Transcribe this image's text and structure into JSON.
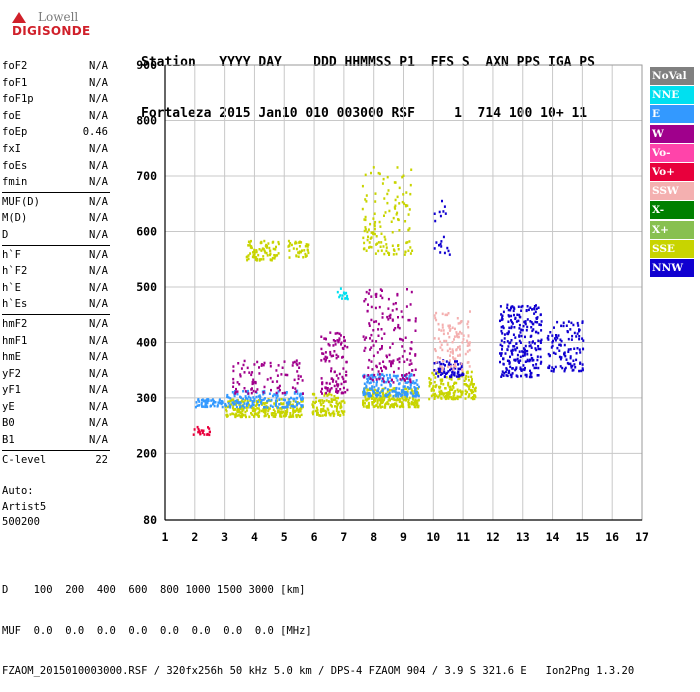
{
  "logo": {
    "line1": "Lowell",
    "line2": "DIGISONDE"
  },
  "header": {
    "labels": [
      "Station",
      "YYYY",
      "DAY",
      "DDD",
      "HHMMSS",
      "P1",
      "FFS",
      "S",
      "AXN",
      "PPS",
      "IGA",
      "PS"
    ],
    "label_line": "Station   YYYY DAY    DDD HHMMSS P1  FFS S  AXN PPS IGA PS",
    "value_line": "Fortaleza 2015 Jan10 010 003000 RSF     1  714 100 10+ 11"
  },
  "params": {
    "group1": [
      {
        "name": "foF2",
        "value": "N/A"
      },
      {
        "name": "foF1",
        "value": "N/A"
      },
      {
        "name": "foF1p",
        "value": "N/A"
      },
      {
        "name": "foE",
        "value": "N/A"
      },
      {
        "name": "foEp",
        "value": "0.46"
      },
      {
        "name": "fxI",
        "value": "N/A"
      },
      {
        "name": "foEs",
        "value": "N/A"
      },
      {
        "name": "fmin",
        "value": "N/A"
      }
    ],
    "group2": [
      {
        "name": "MUF(D)",
        "value": "N/A"
      },
      {
        "name": "M(D)",
        "value": "N/A"
      },
      {
        "name": "D",
        "value": "N/A"
      }
    ],
    "group3": [
      {
        "name": "h`F",
        "value": "N/A"
      },
      {
        "name": "h`F2",
        "value": "N/A"
      },
      {
        "name": "h`E",
        "value": "N/A"
      },
      {
        "name": "h`Es",
        "value": "N/A"
      }
    ],
    "group4": [
      {
        "name": "hmF2",
        "value": "N/A"
      },
      {
        "name": "hmF1",
        "value": "N/A"
      },
      {
        "name": "hmE",
        "value": "N/A"
      },
      {
        "name": "yF2",
        "value": "N/A"
      },
      {
        "name": "yF1",
        "value": "N/A"
      },
      {
        "name": "yE",
        "value": "N/A"
      },
      {
        "name": "B0",
        "value": "N/A"
      },
      {
        "name": "B1",
        "value": "N/A"
      }
    ],
    "group5": [
      {
        "name": "C-level",
        "value": "22"
      }
    ]
  },
  "auto": {
    "line1": "Auto:",
    "line2": "Artist5",
    "line3": "500200"
  },
  "footer": {
    "line1": "D    100  200  400  600  800 1000 1500 3000 [km]",
    "line2": "MUF  0.0  0.0  0.0  0.0  0.0  0.0  0.0  0.0 [MHz]",
    "line3": "FZAOM_2015010003000.RSF / 320fx256h 50 kHz 5.0 km / DPS-4 FZAOM 904 / 3.9 S 321.6 E   Ion2Png 1.3.20"
  },
  "legend": [
    {
      "label": "NoVal",
      "color": "#808080"
    },
    {
      "label": "NNE",
      "color": "#00e0f0"
    },
    {
      "label": "E",
      "color": "#3399ff"
    },
    {
      "label": "W",
      "color": "#a0008c"
    },
    {
      "label": "Vo-",
      "color": "#ff44aa"
    },
    {
      "label": "Vo+",
      "color": "#e8003c"
    },
    {
      "label": "SSW",
      "color": "#f4b0b0"
    },
    {
      "label": "X-",
      "color": "#008000"
    },
    {
      "label": "X+",
      "color": "#88c050"
    },
    {
      "label": "SSE",
      "color": "#c8d400"
    },
    {
      "label": "NNW",
      "color": "#1000d0"
    }
  ],
  "chart_data": {
    "type": "scatter",
    "xlim": [
      1,
      17
    ],
    "ylim": [
      80,
      900
    ],
    "x_ticks": [
      1,
      2,
      3,
      4,
      5,
      6,
      7,
      8,
      9,
      10,
      11,
      12,
      13,
      14,
      15,
      16,
      17
    ],
    "y_ticks": [
      80,
      200,
      300,
      400,
      500,
      600,
      700,
      800,
      900
    ],
    "grid": true,
    "clusters": [
      {
        "series": "Vo+",
        "x": [
          1.9,
          2.5
        ],
        "y": [
          235,
          250
        ],
        "density": 20
      },
      {
        "series": "E",
        "x": [
          2.0,
          3.0
        ],
        "y": [
          285,
          300
        ],
        "density": 60
      },
      {
        "series": "SSE",
        "x": [
          3.0,
          5.6
        ],
        "y": [
          268,
          300
        ],
        "density": 260
      },
      {
        "series": "E",
        "x": [
          3.0,
          5.6
        ],
        "y": [
          285,
          315
        ],
        "density": 150
      },
      {
        "series": "W",
        "x": [
          3.2,
          5.6
        ],
        "y": [
          310,
          370
        ],
        "density": 90
      },
      {
        "series": "SSE",
        "x": [
          3.7,
          4.8
        ],
        "y": [
          550,
          585
        ],
        "density": 80
      },
      {
        "series": "SSE",
        "x": [
          5.1,
          5.8
        ],
        "y": [
          555,
          585
        ],
        "density": 40
      },
      {
        "series": "SSE",
        "x": [
          5.9,
          7.0
        ],
        "y": [
          270,
          310
        ],
        "density": 110
      },
      {
        "series": "W",
        "x": [
          6.2,
          7.1
        ],
        "y": [
          310,
          420
        ],
        "density": 110
      },
      {
        "series": "NNE",
        "x": [
          6.7,
          7.1
        ],
        "y": [
          480,
          500
        ],
        "density": 14
      },
      {
        "series": "SSE",
        "x": [
          7.6,
          9.5
        ],
        "y": [
          285,
          320
        ],
        "density": 240
      },
      {
        "series": "E",
        "x": [
          7.6,
          9.5
        ],
        "y": [
          305,
          345
        ],
        "density": 180
      },
      {
        "series": "W",
        "x": [
          7.6,
          9.4
        ],
        "y": [
          330,
          500
        ],
        "density": 160
      },
      {
        "series": "SSE",
        "x": [
          7.6,
          9.3
        ],
        "y": [
          560,
          720
        ],
        "density": 130
      },
      {
        "series": "NNW",
        "x": [
          10.0,
          10.6
        ],
        "y": [
          560,
          660
        ],
        "density": 20
      },
      {
        "series": "SSE",
        "x": [
          9.8,
          11.4
        ],
        "y": [
          300,
          350
        ],
        "density": 170
      },
      {
        "series": "NNW",
        "x": [
          10.0,
          11.0
        ],
        "y": [
          340,
          370
        ],
        "density": 70
      },
      {
        "series": "SSW",
        "x": [
          10.0,
          11.2
        ],
        "y": [
          350,
          460
        ],
        "density": 110
      },
      {
        "series": "NNW",
        "x": [
          12.2,
          13.6
        ],
        "y": [
          340,
          470
        ],
        "density": 260
      },
      {
        "series": "NNW",
        "x": [
          13.8,
          15.0
        ],
        "y": [
          350,
          440
        ],
        "density": 110
      }
    ]
  }
}
